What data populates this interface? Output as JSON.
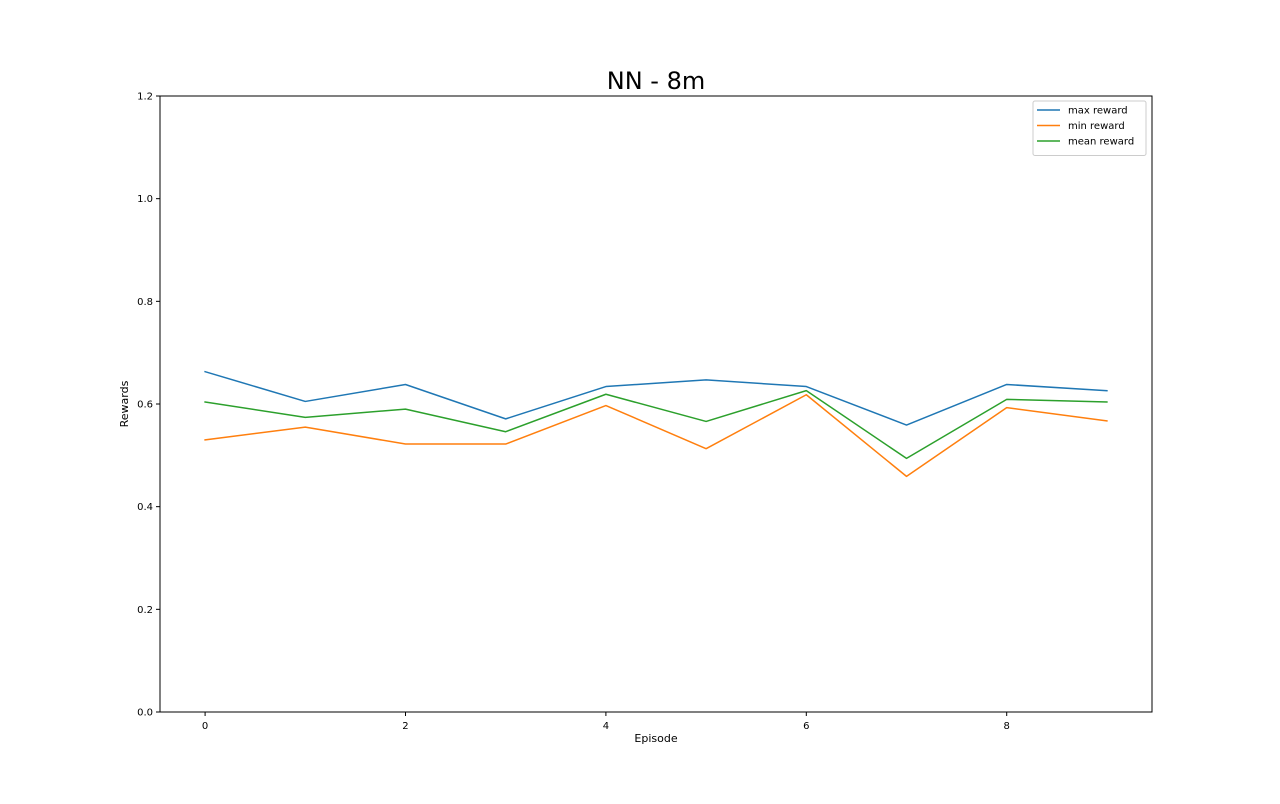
{
  "chart_data": {
    "type": "line",
    "title": "NN - 8m",
    "xlabel": "Episode",
    "ylabel": "Rewards",
    "xlim": [
      -0.45,
      9.45
    ],
    "ylim": [
      0.0,
      1.2
    ],
    "xticks": [
      0,
      2,
      4,
      6,
      8
    ],
    "xtick_labels": [
      "0",
      "2",
      "4",
      "6",
      "8"
    ],
    "yticks": [
      0.0,
      0.2,
      0.4,
      0.6,
      0.8,
      1.0,
      1.2
    ],
    "ytick_labels": [
      "0.0",
      "0.2",
      "0.4",
      "0.6",
      "0.8",
      "1.0",
      "1.2"
    ],
    "grid": false,
    "legend_position": "upper right",
    "x": [
      0,
      1,
      2,
      3,
      4,
      5,
      6,
      7,
      8,
      9
    ],
    "series": [
      {
        "name": "max reward",
        "color": "#1f77b4",
        "values": [
          0.663,
          0.605,
          0.638,
          0.571,
          0.634,
          0.647,
          0.634,
          0.559,
          0.638,
          0.626
        ]
      },
      {
        "name": "min reward",
        "color": "#ff7f0e",
        "values": [
          0.53,
          0.555,
          0.522,
          0.522,
          0.597,
          0.513,
          0.618,
          0.459,
          0.593,
          0.567
        ]
      },
      {
        "name": "mean reward",
        "color": "#2ca02c",
        "values": [
          0.604,
          0.574,
          0.59,
          0.546,
          0.619,
          0.566,
          0.626,
          0.494,
          0.609,
          0.604
        ]
      }
    ]
  }
}
